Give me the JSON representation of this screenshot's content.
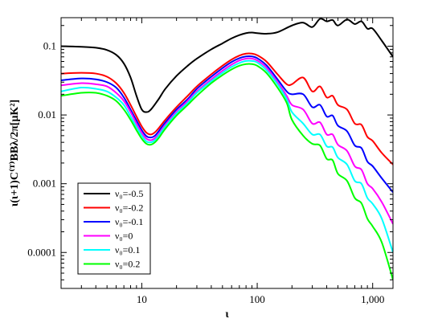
{
  "chart_data": {
    "type": "line",
    "xlabel": "ι",
    "ylabel": "ι(ι+1)C⁽ᵀ⁾BBλ/2π[μK²]",
    "x_scale": "log",
    "y_scale": "log",
    "xlim": [
      2,
      1500
    ],
    "ylim": [
      3e-05,
      0.26
    ],
    "x_ticks": [
      {
        "value": 10,
        "label": "10"
      },
      {
        "value": 100,
        "label": "100"
      },
      {
        "value": 1000,
        "label": "1,000"
      }
    ],
    "y_ticks": [
      {
        "value": 0.1,
        "label": "0.1"
      },
      {
        "value": 0.01,
        "label": "0.01"
      },
      {
        "value": 0.001,
        "label": "0.001"
      },
      {
        "value": 0.0001,
        "label": "0.0001"
      }
    ],
    "grid": false,
    "legend_position": "bottom-left",
    "series": [
      {
        "name": "ν₀=-0.5",
        "color": "#000000",
        "x": [
          2,
          3,
          4,
          5,
          6,
          7,
          8,
          9,
          10,
          11,
          12,
          14,
          16,
          20,
          25,
          30,
          40,
          50,
          60,
          70,
          80,
          90,
          100,
          120,
          150,
          200,
          250,
          300,
          350,
          400,
          450,
          500,
          600,
          700,
          800,
          900,
          1000,
          1200,
          1500
        ],
        "y": [
          0.1,
          0.098,
          0.095,
          0.088,
          0.075,
          0.056,
          0.035,
          0.019,
          0.012,
          0.011,
          0.012,
          0.017,
          0.024,
          0.037,
          0.052,
          0.066,
          0.09,
          0.11,
          0.13,
          0.145,
          0.155,
          0.158,
          0.155,
          0.152,
          0.16,
          0.2,
          0.22,
          0.19,
          0.25,
          0.23,
          0.24,
          0.2,
          0.245,
          0.21,
          0.23,
          0.18,
          0.18,
          0.12,
          0.07
        ]
      },
      {
        "name": "ν₀=-0.2",
        "color": "#ff0000",
        "x": [
          2,
          3,
          4,
          5,
          6,
          7,
          8,
          9,
          10,
          11,
          12,
          13,
          14,
          16,
          20,
          25,
          30,
          40,
          50,
          60,
          70,
          80,
          90,
          100,
          120,
          150,
          180,
          200,
          250,
          300,
          350,
          400,
          450,
          500,
          600,
          700,
          800,
          900,
          1000,
          1200,
          1500
        ],
        "y": [
          0.04,
          0.041,
          0.04,
          0.036,
          0.029,
          0.021,
          0.014,
          0.0095,
          0.0068,
          0.0055,
          0.0052,
          0.0056,
          0.0064,
          0.0085,
          0.013,
          0.019,
          0.026,
          0.039,
          0.052,
          0.064,
          0.073,
          0.078,
          0.078,
          0.074,
          0.06,
          0.039,
          0.028,
          0.028,
          0.035,
          0.022,
          0.026,
          0.018,
          0.019,
          0.014,
          0.012,
          0.0075,
          0.0072,
          0.0048,
          0.0042,
          0.0028,
          0.0019
        ]
      },
      {
        "name": "ν₀=-0.1",
        "color": "#0000ff",
        "x": [
          2,
          3,
          4,
          5,
          6,
          7,
          8,
          9,
          10,
          11,
          12,
          13,
          14,
          16,
          20,
          25,
          30,
          40,
          50,
          60,
          70,
          80,
          90,
          100,
          120,
          150,
          180,
          200,
          250,
          300,
          350,
          400,
          450,
          500,
          600,
          700,
          800,
          900,
          1000,
          1200,
          1500
        ],
        "y": [
          0.032,
          0.034,
          0.033,
          0.03,
          0.025,
          0.018,
          0.012,
          0.0083,
          0.006,
          0.0049,
          0.0047,
          0.005,
          0.0058,
          0.0078,
          0.012,
          0.017,
          0.024,
          0.036,
          0.048,
          0.059,
          0.067,
          0.071,
          0.071,
          0.067,
          0.053,
          0.033,
          0.022,
          0.02,
          0.02,
          0.013,
          0.014,
          0.0095,
          0.0098,
          0.007,
          0.0058,
          0.0036,
          0.0033,
          0.0021,
          0.0018,
          0.0012,
          0.00075
        ]
      },
      {
        "name": "ν₀=0",
        "color": "#ff00ff",
        "x": [
          2,
          3,
          4,
          5,
          6,
          7,
          8,
          9,
          10,
          11,
          12,
          13,
          14,
          16,
          20,
          25,
          30,
          40,
          50,
          60,
          70,
          80,
          90,
          100,
          120,
          150,
          180,
          200,
          250,
          300,
          350,
          400,
          450,
          500,
          600,
          700,
          800,
          900,
          1000,
          1200,
          1500
        ],
        "y": [
          0.027,
          0.029,
          0.028,
          0.026,
          0.021,
          0.016,
          0.011,
          0.0075,
          0.0055,
          0.0045,
          0.0043,
          0.0046,
          0.0053,
          0.0072,
          0.011,
          0.016,
          0.022,
          0.033,
          0.044,
          0.054,
          0.062,
          0.066,
          0.066,
          0.062,
          0.049,
          0.03,
          0.019,
          0.014,
          0.012,
          0.0075,
          0.0078,
          0.0052,
          0.0052,
          0.0037,
          0.003,
          0.0018,
          0.0016,
          0.001,
          0.00085,
          0.00054,
          0.00026
        ]
      },
      {
        "name": "ν₀=0.1",
        "color": "#00ffff",
        "x": [
          2,
          3,
          4,
          5,
          6,
          7,
          8,
          9,
          10,
          11,
          12,
          13,
          14,
          16,
          20,
          25,
          30,
          40,
          50,
          60,
          70,
          80,
          90,
          100,
          120,
          150,
          180,
          200,
          250,
          300,
          350,
          400,
          450,
          500,
          600,
          700,
          800,
          900,
          1000,
          1200,
          1500
        ],
        "y": [
          0.022,
          0.025,
          0.024,
          0.022,
          0.018,
          0.014,
          0.0095,
          0.0067,
          0.005,
          0.0041,
          0.004,
          0.0043,
          0.005,
          0.0068,
          0.0105,
          0.015,
          0.021,
          0.031,
          0.041,
          0.05,
          0.057,
          0.061,
          0.061,
          0.058,
          0.045,
          0.028,
          0.017,
          0.011,
          0.0075,
          0.0052,
          0.0052,
          0.0035,
          0.0034,
          0.0024,
          0.0019,
          0.0011,
          0.001,
          0.00062,
          0.00051,
          0.00031,
          0.0001
        ]
      },
      {
        "name": "ν₀=0.2",
        "color": "#00ff00",
        "x": [
          2,
          3,
          4,
          5,
          6,
          7,
          8,
          9,
          10,
          11,
          12,
          13,
          14,
          16,
          20,
          25,
          30,
          40,
          50,
          60,
          70,
          80,
          90,
          100,
          120,
          150,
          180,
          200,
          250,
          300,
          350,
          400,
          450,
          500,
          600,
          700,
          800,
          900,
          1000,
          1200,
          1500
        ],
        "y": [
          0.019,
          0.021,
          0.021,
          0.019,
          0.016,
          0.012,
          0.0085,
          0.006,
          0.0045,
          0.0038,
          0.0037,
          0.004,
          0.0046,
          0.0063,
          0.0098,
          0.014,
          0.019,
          0.029,
          0.038,
          0.046,
          0.052,
          0.055,
          0.055,
          0.052,
          0.041,
          0.025,
          0.015,
          0.0085,
          0.005,
          0.0038,
          0.0036,
          0.0023,
          0.0022,
          0.0014,
          0.0011,
          0.00062,
          0.00052,
          0.00031,
          0.00024,
          0.00014,
          4e-05
        ]
      }
    ]
  }
}
